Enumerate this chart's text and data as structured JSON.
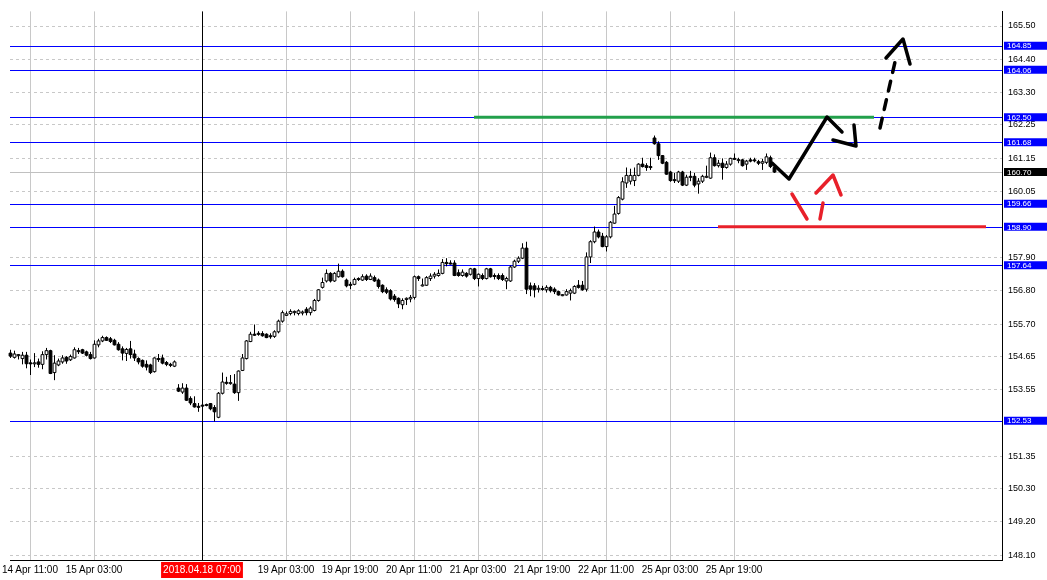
{
  "chart_data": {
    "type": "candlestick",
    "categories": [
      null,
      null,
      null,
      null,
      null,
      "14 Apr 11:00",
      null,
      null,
      null,
      null,
      null,
      null,
      null,
      null,
      null,
      null,
      null,
      null,
      null,
      null,
      null,
      "15 Apr 03:00",
      null,
      null,
      null,
      null,
      null,
      null,
      null,
      null,
      null,
      null,
      null,
      null,
      null,
      null,
      null,
      null,
      null,
      null,
      null,
      null,
      null,
      null,
      null,
      null,
      null,
      null,
      "2018.04.18 07:00",
      null,
      null,
      null,
      null,
      null,
      null,
      null,
      null,
      null,
      null,
      null,
      null,
      null,
      null,
      null,
      null,
      null,
      null,
      null,
      null,
      "19 Apr 03:00",
      null,
      null,
      null,
      null,
      null,
      null,
      null,
      null,
      null,
      null,
      null,
      null,
      null,
      null,
      null,
      "19 Apr 19:00",
      null,
      null,
      null,
      null,
      null,
      null,
      null,
      null,
      null,
      null,
      null,
      null,
      null,
      null,
      null,
      "20 Apr 11:00",
      null,
      null,
      null,
      null,
      null,
      null,
      null,
      null,
      null,
      null,
      null,
      null,
      null,
      null,
      null,
      "21 Apr 03:00",
      null,
      null,
      null,
      null,
      null,
      null,
      null,
      null,
      null,
      null,
      null,
      null,
      null,
      null,
      null,
      "21 Apr 19:00",
      null,
      null,
      null,
      null,
      null,
      null,
      null,
      null,
      null,
      null,
      null,
      null,
      null,
      null,
      null,
      "22 Apr 11:00",
      null,
      null,
      null,
      null,
      null,
      null,
      null,
      null,
      null,
      null,
      null,
      null,
      null,
      null,
      null,
      "25 Apr 03:00",
      null,
      null,
      null,
      null,
      null,
      null,
      null,
      null,
      null,
      null,
      null,
      null,
      null,
      null,
      null,
      "25 Apr 19:00",
      null,
      null,
      null,
      null,
      null,
      null,
      null,
      null,
      null,
      null,
      null,
      null,
      null,
      null,
      null,
      null,
      null,
      null,
      null,
      null,
      null,
      null,
      null,
      null,
      null,
      null,
      null,
      null,
      null,
      null,
      null,
      null,
      null,
      null,
      null,
      null,
      null,
      null,
      null,
      null,
      null,
      null,
      null,
      null,
      null,
      null,
      null,
      null,
      null,
      null,
      null,
      null,
      null,
      null,
      null,
      null,
      null,
      null,
      null,
      null,
      null,
      null,
      null,
      null,
      null,
      null,
      null
    ],
    "ohlc": [
      [
        154.75,
        154.86,
        154.59,
        154.65
      ],
      [
        154.61,
        154.83,
        154.57,
        154.72
      ],
      [
        154.68,
        154.72,
        154.54,
        154.7
      ],
      [
        154.57,
        154.79,
        154.38,
        154.68
      ],
      [
        154.68,
        154.79,
        154.25,
        154.4
      ],
      [
        154.43,
        154.54,
        154.03,
        154.41
      ],
      [
        154.4,
        154.75,
        154.29,
        154.43
      ],
      [
        154.46,
        154.57,
        154.27,
        154.38
      ],
      [
        154.38,
        154.81,
        154.22,
        154.7
      ],
      [
        154.7,
        154.92,
        154.54,
        154.83
      ],
      [
        154.83,
        154.86,
        154.06,
        154.08
      ],
      [
        154.11,
        154.68,
        153.86,
        154.42
      ],
      [
        154.36,
        154.57,
        154.32,
        154.49
      ],
      [
        154.46,
        154.68,
        154.4,
        154.59
      ],
      [
        154.61,
        154.65,
        154.4,
        154.49
      ],
      [
        154.53,
        154.7,
        154.49,
        154.64
      ],
      [
        154.59,
        154.94,
        154.57,
        154.86
      ],
      [
        154.83,
        154.92,
        154.72,
        154.81
      ],
      [
        154.86,
        154.89,
        154.72,
        154.75
      ],
      [
        154.79,
        154.83,
        154.64,
        154.68
      ],
      [
        154.7,
        154.79,
        154.54,
        154.57
      ],
      [
        154.59,
        155.17,
        154.57,
        155.04
      ],
      [
        155.02,
        155.22,
        154.94,
        155.15
      ],
      [
        155.15,
        155.32,
        155.11,
        155.26
      ],
      [
        155.26,
        155.3,
        155.15,
        155.17
      ],
      [
        155.22,
        155.28,
        155.08,
        155.13
      ],
      [
        155.17,
        155.22,
        155.0,
        155.02
      ],
      [
        155.04,
        155.11,
        154.83,
        154.86
      ],
      [
        154.89,
        154.97,
        154.51,
        154.75
      ],
      [
        154.74,
        154.92,
        154.49,
        154.87
      ],
      [
        154.89,
        155.15,
        154.57,
        154.7
      ],
      [
        154.72,
        154.86,
        154.49,
        154.59
      ],
      [
        154.57,
        154.61,
        154.38,
        154.46
      ],
      [
        154.51,
        154.54,
        154.27,
        154.32
      ],
      [
        154.38,
        154.51,
        154.18,
        154.29
      ],
      [
        154.36,
        154.4,
        154.06,
        154.11
      ],
      [
        154.14,
        154.61,
        154.11,
        154.59
      ],
      [
        154.57,
        154.72,
        154.46,
        154.56
      ],
      [
        154.59,
        154.7,
        154.38,
        154.42
      ],
      [
        154.44,
        154.49,
        154.32,
        154.38
      ],
      [
        154.38,
        154.43,
        154.29,
        154.36
      ],
      [
        154.32,
        154.51,
        154.29,
        154.46
      ],
      [
        153.6,
        153.73,
        153.47,
        153.5
      ],
      [
        153.47,
        153.76,
        153.41,
        153.6
      ],
      [
        153.6,
        153.73,
        153.18,
        153.2
      ],
      [
        153.26,
        153.33,
        153.04,
        153.11
      ],
      [
        153.09,
        153.33,
        152.96,
        152.98
      ],
      [
        153.0,
        153.11,
        152.82,
        152.99
      ],
      [
        153.04,
        153.11,
        152.87,
        153.03
      ],
      [
        153.05,
        153.09,
        153.0,
        153.06
      ],
      [
        153.09,
        153.11,
        152.87,
        152.92
      ],
      [
        152.96,
        153.04,
        152.5,
        152.82
      ],
      [
        152.64,
        153.47,
        152.61,
        153.43
      ],
      [
        153.43,
        154.11,
        153.39,
        153.8
      ],
      [
        153.79,
        153.97,
        153.71,
        153.78
      ],
      [
        153.77,
        154.03,
        153.71,
        153.78
      ],
      [
        153.73,
        154.06,
        153.41,
        153.45
      ],
      [
        153.45,
        154.18,
        153.18,
        154.16
      ],
      [
        154.18,
        154.72,
        154.16,
        154.59
      ],
      [
        154.57,
        155.18,
        154.54,
        155.15
      ],
      [
        155.13,
        155.45,
        155.11,
        155.37
      ],
      [
        155.37,
        155.69,
        155.32,
        155.34
      ],
      [
        155.4,
        155.47,
        155.32,
        155.39
      ],
      [
        155.39,
        155.47,
        155.29,
        155.32
      ],
      [
        155.37,
        155.4,
        155.24,
        155.26
      ],
      [
        155.32,
        155.4,
        155.22,
        155.29
      ],
      [
        155.3,
        155.5,
        155.25,
        155.45
      ],
      [
        155.45,
        155.85,
        155.4,
        155.8
      ],
      [
        155.8,
        156.15,
        155.75,
        156.08
      ],
      [
        155.99,
        156.12,
        155.97,
        156.04
      ],
      [
        156.05,
        156.19,
        155.99,
        156.12
      ],
      [
        156.08,
        156.15,
        155.99,
        156.12
      ],
      [
        156.05,
        156.19,
        155.99,
        156.14
      ],
      [
        156.08,
        156.15,
        155.99,
        156.1
      ],
      [
        156.19,
        156.26,
        155.99,
        156.08
      ],
      [
        156.08,
        156.29,
        155.99,
        156.23
      ],
      [
        156.15,
        156.53,
        156.12,
        156.48
      ],
      [
        156.48,
        156.85,
        156.44,
        156.83
      ],
      [
        156.91,
        157.23,
        156.87,
        157.07
      ],
      [
        157.12,
        157.5,
        157.07,
        157.37
      ],
      [
        157.37,
        157.41,
        157.07,
        157.12
      ],
      [
        157.12,
        157.41,
        157.09,
        157.37
      ],
      [
        157.26,
        157.69,
        157.23,
        157.44
      ],
      [
        157.44,
        157.5,
        157.23,
        157.26
      ],
      [
        157.15,
        157.2,
        156.91,
        156.96
      ],
      [
        157.01,
        157.09,
        156.85,
        156.98
      ],
      [
        157.01,
        157.23,
        156.98,
        157.17
      ],
      [
        157.2,
        157.24,
        157.12,
        157.18
      ],
      [
        157.15,
        157.34,
        157.12,
        157.26
      ],
      [
        157.28,
        157.34,
        157.12,
        157.17
      ],
      [
        157.17,
        157.37,
        157.15,
        157.28
      ],
      [
        157.23,
        157.3,
        157.09,
        157.12
      ],
      [
        157.15,
        157.2,
        156.87,
        156.94
      ],
      [
        156.98,
        157.01,
        156.72,
        156.77
      ],
      [
        156.83,
        156.91,
        156.69,
        156.75
      ],
      [
        156.8,
        156.85,
        156.48,
        156.53
      ],
      [
        156.62,
        156.69,
        156.44,
        156.51
      ],
      [
        156.55,
        156.58,
        156.23,
        156.37
      ],
      [
        156.34,
        156.55,
        156.19,
        156.48
      ],
      [
        156.51,
        156.58,
        156.33,
        156.55
      ],
      [
        156.53,
        156.66,
        156.42,
        156.58
      ],
      [
        156.58,
        157.3,
        156.51,
        157.26
      ],
      [
        157.26,
        157.3,
        157.12,
        157.2
      ],
      [
        156.98,
        157.2,
        156.94,
        156.99
      ],
      [
        156.98,
        157.28,
        156.96,
        157.23
      ],
      [
        157.2,
        157.37,
        157.12,
        157.28
      ],
      [
        157.28,
        157.41,
        157.2,
        157.34
      ],
      [
        157.3,
        157.5,
        157.26,
        157.37
      ],
      [
        157.37,
        157.84,
        157.34,
        157.73
      ],
      [
        157.73,
        157.87,
        157.6,
        157.69
      ],
      [
        157.71,
        157.8,
        157.66,
        157.7
      ],
      [
        157.71,
        157.8,
        157.28,
        157.3
      ],
      [
        157.39,
        157.5,
        157.26,
        157.3
      ],
      [
        157.3,
        157.5,
        157.26,
        157.41
      ],
      [
        157.37,
        157.41,
        157.23,
        157.28
      ],
      [
        157.34,
        157.55,
        157.3,
        157.52
      ],
      [
        157.52,
        157.55,
        157.15,
        157.2
      ],
      [
        157.2,
        157.37,
        156.94,
        157.34
      ],
      [
        157.3,
        157.37,
        157.15,
        157.2
      ],
      [
        157.2,
        157.55,
        157.17,
        157.52
      ],
      [
        157.52,
        157.55,
        157.23,
        157.26
      ],
      [
        157.3,
        157.37,
        157.17,
        157.28
      ],
      [
        157.3,
        157.37,
        157.15,
        157.2
      ],
      [
        157.3,
        157.37,
        157.12,
        157.17
      ],
      [
        157.12,
        157.26,
        156.85,
        157.2
      ],
      [
        157.12,
        157.63,
        157.09,
        157.58
      ],
      [
        157.58,
        157.82,
        157.55,
        157.77
      ],
      [
        157.77,
        157.93,
        157.71,
        157.87
      ],
      [
        157.87,
        158.36,
        157.84,
        158.2
      ],
      [
        158.2,
        158.41,
        156.69,
        156.85
      ],
      [
        156.96,
        157.07,
        156.62,
        156.85
      ],
      [
        156.96,
        157.05,
        156.58,
        156.83
      ],
      [
        156.87,
        156.98,
        156.74,
        156.88
      ],
      [
        156.87,
        156.96,
        156.8,
        156.85
      ],
      [
        156.83,
        156.98,
        156.74,
        156.91
      ],
      [
        156.91,
        156.96,
        156.74,
        156.8
      ],
      [
        156.85,
        156.91,
        156.69,
        156.77
      ],
      [
        156.77,
        156.8,
        156.64,
        156.66
      ],
      [
        156.66,
        156.69,
        156.62,
        156.67
      ],
      [
        156.66,
        156.85,
        156.64,
        156.77
      ],
      [
        156.72,
        156.87,
        156.48,
        156.8
      ],
      [
        156.72,
        156.98,
        156.69,
        156.94
      ],
      [
        156.98,
        157.15,
        156.87,
        156.91
      ],
      [
        156.98,
        157.12,
        156.8,
        156.83
      ],
      [
        156.85,
        158.06,
        156.77,
        157.91
      ],
      [
        157.91,
        158.46,
        157.71,
        158.41
      ],
      [
        158.41,
        158.91,
        158.36,
        158.73
      ],
      [
        158.73,
        158.81,
        158.52,
        158.57
      ],
      [
        158.59,
        158.7,
        158.23,
        158.25
      ],
      [
        158.25,
        158.63,
        158.09,
        158.57
      ],
      [
        158.57,
        159.09,
        158.52,
        159.05
      ],
      [
        159.02,
        159.59,
        159.0,
        159.32
      ],
      [
        159.34,
        159.91,
        159.3,
        159.86
      ],
      [
        159.81,
        160.53,
        159.77,
        160.38
      ],
      [
        160.34,
        160.85,
        160.18,
        160.59
      ],
      [
        160.4,
        160.81,
        160.29,
        160.59
      ],
      [
        160.42,
        160.85,
        160.24,
        160.59
      ],
      [
        160.59,
        160.99,
        160.56,
        160.96
      ],
      [
        160.96,
        161.17,
        160.85,
        160.88
      ],
      [
        160.91,
        160.99,
        160.74,
        160.85
      ],
      [
        160.88,
        161.17,
        160.77,
        160.85
      ],
      [
        161.82,
        161.9,
        161.6,
        161.63
      ],
      [
        161.63,
        161.71,
        161.1,
        161.24
      ],
      [
        161.24,
        161.26,
        160.96,
        160.99
      ],
      [
        161.02,
        161.06,
        160.61,
        160.63
      ],
      [
        160.7,
        160.74,
        160.38,
        160.42
      ],
      [
        160.45,
        160.67,
        160.34,
        160.43
      ],
      [
        160.4,
        160.74,
        160.34,
        160.7
      ],
      [
        160.7,
        160.74,
        160.24,
        160.27
      ],
      [
        160.27,
        160.61,
        160.24,
        160.53
      ],
      [
        160.56,
        160.74,
        160.4,
        160.53
      ],
      [
        160.56,
        160.67,
        160.2,
        160.27
      ],
      [
        160.31,
        160.5,
        159.99,
        160.4
      ],
      [
        160.4,
        160.61,
        160.34,
        160.56
      ],
      [
        160.53,
        160.91,
        160.5,
        160.56
      ],
      [
        160.5,
        161.34,
        160.48,
        161.17
      ],
      [
        161.17,
        161.28,
        160.88,
        160.91
      ],
      [
        160.91,
        161.1,
        160.85,
        160.99
      ],
      [
        160.99,
        161.15,
        160.45,
        160.85
      ],
      [
        160.85,
        161.06,
        160.81,
        160.96
      ],
      [
        160.96,
        161.17,
        160.91,
        161.15
      ],
      [
        161.15,
        161.31,
        161.1,
        161.13
      ],
      [
        161.1,
        161.17,
        160.99,
        161.11
      ],
      [
        161.1,
        161.13,
        160.88,
        160.91
      ],
      [
        160.96,
        161.1,
        160.77,
        161.06
      ],
      [
        161.1,
        161.17,
        161.02,
        161.06
      ],
      [
        161.1,
        161.17,
        161.02,
        161.09
      ],
      [
        161.04,
        161.1,
        160.93,
        160.99
      ],
      [
        160.99,
        161.13,
        160.77,
        161.04
      ],
      [
        161.02,
        161.31,
        160.96,
        161.2
      ],
      [
        161.17,
        161.24,
        160.83,
        160.88
      ],
      [
        160.85,
        160.91,
        160.67,
        160.7
      ],
      null,
      null,
      null,
      null,
      null,
      null,
      null,
      null,
      null,
      null,
      null,
      null,
      null,
      null,
      null,
      null,
      null,
      null,
      null,
      null,
      null,
      null,
      null,
      null,
      null,
      null,
      null,
      null,
      null,
      null,
      null,
      null,
      null,
      null,
      null,
      null,
      null,
      null,
      null,
      null,
      null,
      null,
      null,
      null,
      null,
      null,
      null,
      null,
      null,
      null,
      null,
      null,
      null,
      null,
      null,
      null,
      null
    ],
    "series": [
      {
        "type": "line",
        "color": "#22a04b",
        "values": [
          null,
          null,
          null,
          null,
          null,
          null,
          null,
          null,
          null,
          null,
          null,
          null,
          null,
          null,
          null,
          null,
          null,
          null,
          null,
          null,
          null,
          null,
          null,
          null,
          null,
          null,
          null,
          null,
          null,
          null,
          null,
          null,
          null,
          null,
          null,
          null,
          null,
          null,
          null,
          null,
          null,
          null,
          null,
          null,
          null,
          null,
          null,
          null,
          null,
          null,
          null,
          null,
          null,
          null,
          null,
          null,
          null,
          null,
          null,
          null,
          null,
          null,
          null,
          null,
          null,
          null,
          null,
          null,
          null,
          null,
          null,
          null,
          null,
          null,
          null,
          null,
          null,
          null,
          null,
          null,
          null,
          null,
          null,
          null,
          null,
          null,
          null,
          null,
          null,
          null,
          null,
          null,
          null,
          null,
          null,
          null,
          null,
          null,
          null,
          null,
          null,
          null,
          null,
          null,
          null,
          null,
          null,
          null,
          null,
          null,
          null,
          null,
          null,
          null,
          null,
          null,
          162.5,
          null,
          null,
          null,
          null,
          null,
          null,
          null,
          null,
          null,
          null,
          null,
          null,
          null,
          null,
          null,
          null,
          null,
          null,
          null,
          null,
          null,
          null,
          null,
          null,
          null,
          null,
          null,
          null,
          null,
          null,
          null,
          null,
          null,
          null,
          null,
          null,
          null,
          null,
          null,
          null,
          null,
          null,
          null,
          null,
          null,
          null,
          null,
          null,
          null,
          null,
          null,
          null,
          null,
          null,
          null,
          null,
          null,
          null,
          null,
          null,
          null,
          null,
          null,
          null,
          null,
          null,
          null,
          null,
          null,
          null,
          null,
          null,
          null,
          null,
          null,
          null,
          null,
          null,
          null,
          null,
          null,
          null,
          null,
          null,
          null,
          null,
          null,
          null,
          null,
          null,
          null,
          null,
          null,
          null,
          null,
          null,
          null,
          null,
          null,
          162.5,
          null,
          null,
          null,
          null,
          null,
          null,
          null,
          null,
          null,
          null,
          null,
          null,
          null,
          null,
          null,
          null,
          null,
          null,
          null,
          null,
          null,
          null,
          null,
          null,
          null,
          null,
          null,
          null,
          null,
          null,
          null,
          null
        ]
      },
      {
        "type": "line",
        "color": "#e8202a",
        "values": [
          null,
          null,
          null,
          null,
          null,
          null,
          null,
          null,
          null,
          null,
          null,
          null,
          null,
          null,
          null,
          null,
          null,
          null,
          null,
          null,
          null,
          null,
          null,
          null,
          null,
          null,
          null,
          null,
          null,
          null,
          null,
          null,
          null,
          null,
          null,
          null,
          null,
          null,
          null,
          null,
          null,
          null,
          null,
          null,
          null,
          null,
          null,
          null,
          null,
          null,
          null,
          null,
          null,
          null,
          null,
          null,
          null,
          null,
          null,
          null,
          null,
          null,
          null,
          null,
          null,
          null,
          null,
          null,
          null,
          null,
          null,
          null,
          null,
          null,
          null,
          null,
          null,
          null,
          null,
          null,
          null,
          null,
          null,
          null,
          null,
          null,
          null,
          null,
          null,
          null,
          null,
          null,
          null,
          null,
          null,
          null,
          null,
          null,
          null,
          null,
          null,
          null,
          null,
          null,
          null,
          null,
          null,
          null,
          null,
          null,
          null,
          null,
          null,
          null,
          null,
          null,
          null,
          null,
          null,
          null,
          null,
          null,
          null,
          null,
          null,
          null,
          null,
          null,
          null,
          null,
          null,
          null,
          null,
          null,
          null,
          null,
          null,
          null,
          null,
          null,
          null,
          null,
          null,
          null,
          null,
          null,
          null,
          null,
          null,
          null,
          null,
          null,
          null,
          null,
          null,
          null,
          null,
          null,
          null,
          null,
          null,
          null,
          null,
          null,
          null,
          null,
          null,
          null,
          null,
          null,
          null,
          null,
          null,
          null,
          null,
          null,
          null,
          158.9,
          null,
          null,
          null,
          null,
          null,
          null,
          null,
          null,
          null,
          null,
          null,
          null,
          null,
          null,
          null,
          null,
          null,
          null,
          null,
          null,
          null,
          null,
          null,
          null,
          null,
          null,
          null,
          null,
          null,
          null,
          null,
          null,
          null,
          null,
          null,
          null,
          null,
          null,
          null,
          null,
          null,
          null,
          null,
          null,
          null,
          null,
          null,
          null,
          null,
          null,
          null,
          null,
          null,
          null,
          null,
          null,
          null,
          null,
          null,
          null,
          null,
          null,
          null,
          null,
          null,
          null,
          158.9,
          null,
          null,
          null,
          null
        ]
      }
    ],
    "ylim": [
      147.95,
      165.98
    ],
    "yticks": [
      {
        "value": 148.1,
        "label": "148.10"
      },
      {
        "value": 149.2,
        "label": "149.20"
      },
      {
        "value": 150.3,
        "label": "150.30"
      },
      {
        "value": 151.35,
        "label": "151.35"
      },
      {
        "value": 153.55,
        "label": "153.55"
      },
      {
        "value": 154.65,
        "label": "154.65"
      },
      {
        "value": 155.7,
        "label": "155.70"
      },
      {
        "value": 156.8,
        "label": "156.80"
      },
      {
        "value": 157.9,
        "label": "157.90"
      },
      {
        "value": 160.05,
        "label": "160.05"
      },
      {
        "value": 161.15,
        "label": "161.15"
      },
      {
        "value": 162.25,
        "label": "162.25"
      },
      {
        "value": 163.3,
        "label": "163.30"
      },
      {
        "value": 164.4,
        "label": "164.40"
      },
      {
        "value": 165.5,
        "label": "165.50"
      }
    ],
    "ref_lines": [
      {
        "axis": "y",
        "value": 164.85,
        "label": "164.85",
        "color": "#0000ff"
      },
      {
        "axis": "y",
        "value": 164.06,
        "label": "164.06",
        "color": "#0000ff"
      },
      {
        "axis": "y",
        "value": 162.5,
        "label": "162.50",
        "color": "#0000ff"
      },
      {
        "axis": "y",
        "value": 161.68,
        "label": "161.68",
        "color": "#0000ff"
      },
      {
        "axis": "y",
        "value": 160.7,
        "label": "160.70",
        "color": "#c0c0c0"
      },
      {
        "axis": "y",
        "value": 159.66,
        "label": "159.66",
        "color": "#0000ff"
      },
      {
        "axis": "y",
        "value": 158.9,
        "label": "158.90",
        "color": "#0000ff"
      },
      {
        "axis": "y",
        "value": 157.64,
        "label": "157.64",
        "color": "#0000ff"
      },
      {
        "axis": "y",
        "value": 152.53,
        "label": "152.53",
        "color": "#0000ff"
      },
      {
        "axis": "x",
        "value": "2018.04.18 07:00",
        "color": "#000000"
      }
    ],
    "grid": true
  }
}
